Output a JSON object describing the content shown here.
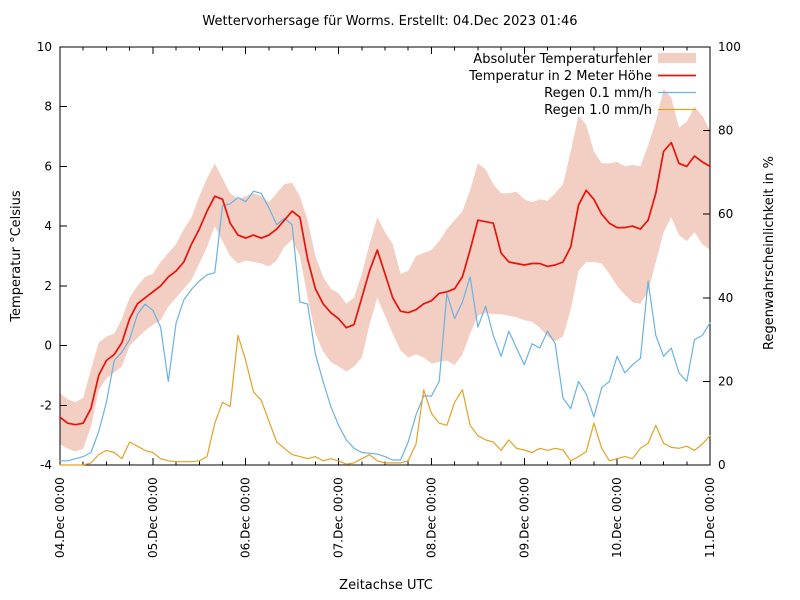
{
  "window": {
    "background": "#ffffff"
  },
  "colors": {
    "axis": "#000000",
    "text": "#000000",
    "error_band": "#f2cfc2",
    "temperature_line": "#e8130c",
    "rain01_line": "#6ab2e2",
    "rain10_line": "#e2a226"
  },
  "chart_data": {
    "type": "line",
    "title": "Wettervorhersage für Worms. Erstellt: 04.Dec 2023 01:46",
    "xlabel": "Zeitachse UTC",
    "ylabel": "Temperatur °Celsius",
    "y2label": "Regenwahrscheinlichkeit in %",
    "grid": false,
    "legend_position": "top-right-inside",
    "x_axis": {
      "unit": "hours since 04.Dec 00:00",
      "range_hours": [
        0,
        168
      ],
      "major_tick_hours": 24,
      "minor_tick_hours": 6,
      "tick_labels": [
        "04.Dec 00:00",
        "05.Dec 00:00",
        "06.Dec 00:00",
        "07.Dec 00:00",
        "08.Dec 00:00",
        "09.Dec 00:00",
        "10.Dec 00:00",
        "11.Dec 00:00"
      ]
    },
    "y_axis_left": {
      "label": "Temperatur °Celsius",
      "range": [
        -4,
        10
      ],
      "ticks": [
        -4,
        -2,
        0,
        2,
        4,
        6,
        8,
        10
      ]
    },
    "y_axis_right": {
      "label": "Regenwahrscheinlichkeit in %",
      "range": [
        0,
        100
      ],
      "ticks": [
        0,
        20,
        40,
        60,
        80,
        100
      ]
    },
    "hours": [
      0,
      2,
      4,
      6,
      8,
      10,
      12,
      14,
      16,
      18,
      20,
      22,
      24,
      26,
      28,
      30,
      32,
      34,
      36,
      38,
      40,
      42,
      44,
      46,
      48,
      50,
      52,
      54,
      56,
      58,
      60,
      62,
      64,
      66,
      68,
      70,
      72,
      74,
      76,
      78,
      80,
      82,
      84,
      86,
      88,
      90,
      92,
      94,
      96,
      98,
      100,
      102,
      104,
      106,
      108,
      110,
      112,
      114,
      116,
      118,
      120,
      122,
      124,
      126,
      128,
      130,
      132,
      134,
      136,
      138,
      140,
      142,
      144,
      146,
      148,
      150,
      152,
      154,
      156,
      158,
      160,
      162,
      164,
      166,
      168
    ],
    "series": [
      {
        "name": "Absoluter Temperaturfehler",
        "type": "band",
        "axis": "left",
        "color": "#f2cfc2",
        "upper": [
          -1.6,
          -1.8,
          -1.9,
          -1.75,
          -0.8,
          0.1,
          0.3,
          0.4,
          0.9,
          1.6,
          2.0,
          2.3,
          2.4,
          2.8,
          3.1,
          3.4,
          3.9,
          4.3,
          5.0,
          5.6,
          6.1,
          5.6,
          5.1,
          4.9,
          5.0,
          5.1,
          5.0,
          4.8,
          5.1,
          5.4,
          5.45,
          5.0,
          4.2,
          3.0,
          2.3,
          1.9,
          1.75,
          1.4,
          1.6,
          2.4,
          3.4,
          4.3,
          3.8,
          3.4,
          2.4,
          2.5,
          3.0,
          3.1,
          3.2,
          3.5,
          3.9,
          4.2,
          4.5,
          5.2,
          6.1,
          5.9,
          5.4,
          5.1,
          5.1,
          5.15,
          4.9,
          4.8,
          4.9,
          4.85,
          5.1,
          5.4,
          6.5,
          7.7,
          7.4,
          6.5,
          6.1,
          6.1,
          6.15,
          6.0,
          6.05,
          6.0,
          6.7,
          7.5,
          8.6,
          8.3,
          7.3,
          7.5,
          8.0,
          7.7,
          7.2
        ],
        "lower": [
          -3.3,
          -3.45,
          -3.55,
          -3.45,
          -2.7,
          -1.5,
          -1.1,
          -0.9,
          -0.7,
          0.0,
          0.25,
          0.5,
          0.7,
          0.85,
          1.3,
          1.6,
          1.9,
          2.2,
          2.75,
          3.3,
          4.0,
          3.5,
          3.0,
          2.75,
          2.85,
          2.8,
          2.75,
          2.65,
          2.85,
          3.3,
          3.55,
          3.0,
          1.6,
          0.4,
          -0.2,
          -0.55,
          -0.7,
          -0.87,
          -0.7,
          -0.4,
          0.7,
          1.6,
          1.0,
          0.4,
          -0.15,
          -0.4,
          -0.3,
          -0.4,
          -0.6,
          -0.55,
          -0.5,
          -0.65,
          -0.3,
          0.4,
          1.0,
          1.1,
          1.05,
          1.05,
          1.0,
          0.95,
          0.85,
          0.8,
          0.6,
          0.3,
          0.15,
          0.3,
          1.2,
          2.5,
          2.8,
          2.8,
          2.75,
          2.4,
          2.0,
          1.7,
          1.45,
          1.4,
          1.8,
          2.8,
          3.8,
          4.3,
          3.7,
          3.5,
          3.8,
          3.4,
          3.2
        ]
      },
      {
        "name": "Temperatur in 2 Meter Höhe",
        "type": "line",
        "axis": "left",
        "color": "#e8130c",
        "values": [
          -2.4,
          -2.6,
          -2.65,
          -2.6,
          -2.1,
          -1.0,
          -0.5,
          -0.3,
          0.1,
          0.9,
          1.4,
          1.6,
          1.8,
          2.0,
          2.3,
          2.5,
          2.8,
          3.4,
          3.9,
          4.5,
          5.0,
          4.9,
          4.1,
          3.7,
          3.6,
          3.7,
          3.6,
          3.7,
          3.9,
          4.2,
          4.5,
          4.3,
          2.9,
          1.9,
          1.4,
          1.1,
          0.9,
          0.6,
          0.7,
          1.6,
          2.5,
          3.2,
          2.4,
          1.6,
          1.15,
          1.1,
          1.2,
          1.4,
          1.5,
          1.75,
          1.8,
          1.9,
          2.3,
          3.2,
          4.2,
          4.15,
          4.1,
          3.1,
          2.8,
          2.75,
          2.7,
          2.75,
          2.75,
          2.65,
          2.7,
          2.8,
          3.3,
          4.7,
          5.2,
          4.9,
          4.4,
          4.1,
          3.95,
          3.95,
          4.0,
          3.9,
          4.2,
          5.1,
          6.5,
          6.8,
          6.1,
          6.0,
          6.35,
          6.15,
          6.0
        ]
      },
      {
        "name": "Regen 0.1 mm/h",
        "type": "line",
        "axis": "right",
        "color": "#6ab2e2",
        "values": [
          1,
          1,
          1.5,
          2,
          3,
          8,
          15,
          25,
          27,
          30,
          36,
          38.5,
          37,
          33,
          20,
          34,
          39.5,
          42,
          44,
          45.5,
          46,
          62,
          62.5,
          64,
          63,
          65.5,
          65,
          61.5,
          57.5,
          59,
          57.5,
          39,
          38.5,
          26.5,
          20,
          14,
          9.5,
          6,
          4,
          3,
          2.8,
          2.6,
          2,
          1.2,
          1.2,
          5.5,
          12,
          16.5,
          16.5,
          20,
          41,
          35,
          39,
          45,
          33,
          38,
          31,
          26,
          32,
          28,
          24,
          29,
          28,
          32,
          29,
          16,
          13.5,
          20,
          17,
          11.5,
          18.5,
          20,
          26,
          22,
          24,
          25.5,
          44,
          31,
          26,
          28,
          22,
          20,
          30,
          31,
          34
        ]
      },
      {
        "name": "Regen 1.0 mm/h",
        "type": "line",
        "axis": "right",
        "color": "#e2a226",
        "values": [
          0,
          0,
          0,
          0,
          0.5,
          2.5,
          3.5,
          3,
          1.5,
          5.5,
          4.5,
          3.5,
          3,
          1.5,
          1,
          0.8,
          0.8,
          0.8,
          1,
          2,
          10,
          15,
          14,
          31,
          25,
          17.5,
          15.5,
          10.5,
          5.5,
          4,
          2.5,
          2,
          1.5,
          2,
          1,
          1.5,
          1,
          0.2,
          0.5,
          1.5,
          2.5,
          1,
          0.5,
          0.5,
          0.5,
          1,
          5,
          18,
          12.4,
          10,
          9.5,
          15,
          18,
          9.5,
          7,
          6,
          5.5,
          3.5,
          6,
          4,
          3.6,
          3,
          4,
          3.5,
          4,
          3.6,
          1,
          2,
          3.2,
          10,
          4,
          1,
          1.5,
          2,
          1.5,
          4,
          5.2,
          9.5,
          5.2,
          4.2,
          4,
          4.5,
          3.5,
          5,
          7
        ]
      }
    ]
  }
}
